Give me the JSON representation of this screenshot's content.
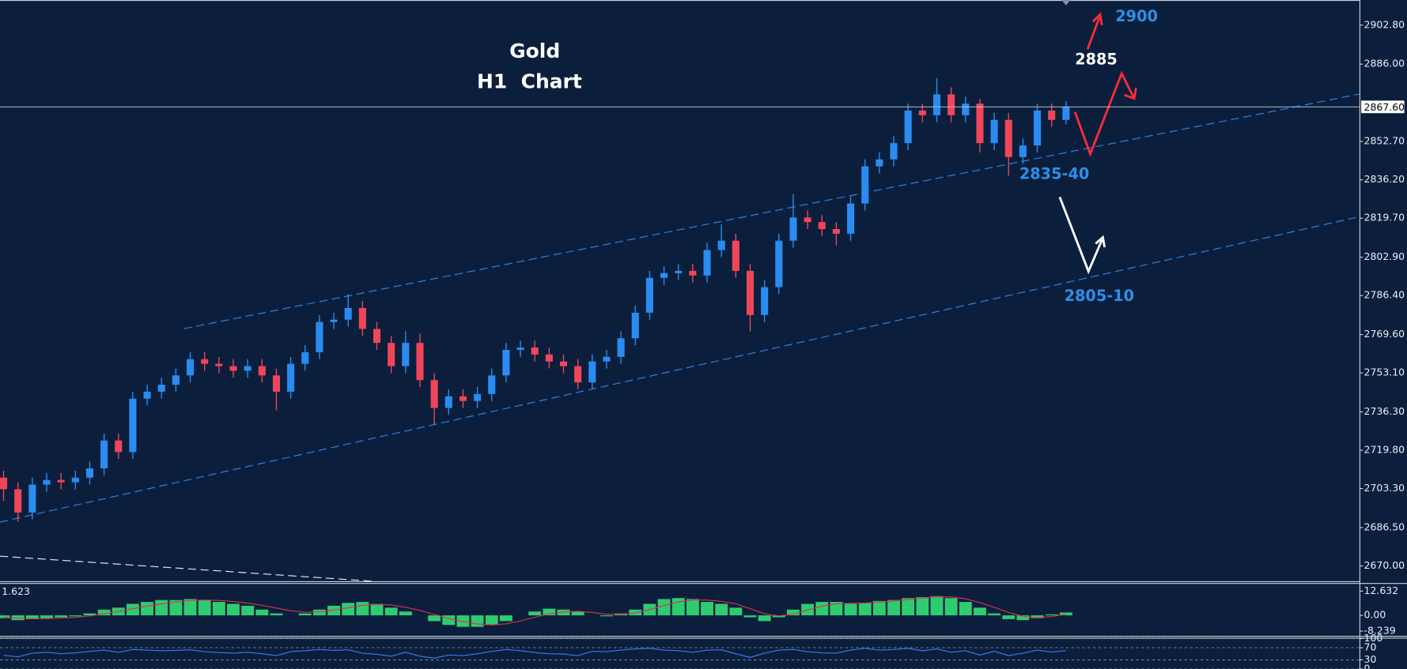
{
  "chart_data": [
    {
      "type": "candlestick",
      "title": "Gold",
      "subtitle": "H1  Chart",
      "up_color": "#2a8cf0",
      "down_color": "#f0465a",
      "open": [
        2708,
        2703,
        2693,
        2705,
        2707,
        2706,
        2708,
        2712,
        2724,
        2719,
        2742,
        2745,
        2748,
        2752,
        2759,
        2757,
        2756,
        2754,
        2756,
        2752,
        2745,
        2757,
        2762,
        2775,
        2776,
        2781,
        2772,
        2766,
        2756,
        2766,
        2750,
        2738,
        2743,
        2741,
        2744,
        2752,
        2763,
        2764,
        2761,
        2758,
        2756,
        2749,
        2758,
        2760,
        2768,
        2779,
        2794,
        2796,
        2797,
        2795,
        2806,
        2810,
        2797,
        2778,
        2790,
        2810,
        2820,
        2818,
        2815,
        2813,
        2826,
        2842,
        2845,
        2852,
        2866,
        2864,
        2873,
        2864,
        2869,
        2852,
        2862,
        2846,
        2851,
        2866,
        2862
      ],
      "high": [
        2711,
        2706,
        2708,
        2710,
        2710,
        2711,
        2715,
        2727,
        2727,
        2745,
        2748,
        2751,
        2755,
        2762,
        2762,
        2760,
        2759,
        2759,
        2759,
        2755,
        2760,
        2765,
        2778,
        2779,
        2787,
        2784,
        2775,
        2769,
        2771,
        2770,
        2753,
        2746,
        2746,
        2747,
        2755,
        2766,
        2767,
        2767,
        2764,
        2761,
        2759,
        2761,
        2763,
        2771,
        2782,
        2797,
        2799,
        2800,
        2800,
        2809,
        2817,
        2813,
        2800,
        2793,
        2813,
        2830,
        2823,
        2821,
        2818,
        2829,
        2845,
        2848,
        2855,
        2869,
        2869,
        2880,
        2876,
        2872,
        2871,
        2865,
        2865,
        2854,
        2869,
        2869,
        2870
      ],
      "low": [
        2698,
        2689,
        2690,
        2702,
        2703,
        2703,
        2705,
        2709,
        2716,
        2716,
        2739,
        2742,
        2745,
        2749,
        2754,
        2753,
        2751,
        2751,
        2749,
        2737,
        2742,
        2754,
        2759,
        2772,
        2773,
        2769,
        2763,
        2753,
        2753,
        2747,
        2731,
        2735,
        2738,
        2738,
        2741,
        2749,
        2760,
        2758,
        2755,
        2753,
        2746,
        2746,
        2755,
        2757,
        2765,
        2776,
        2791,
        2793,
        2792,
        2792,
        2803,
        2794,
        2771,
        2775,
        2787,
        2807,
        2815,
        2812,
        2808,
        2810,
        2823,
        2839,
        2842,
        2849,
        2861,
        2861,
        2861,
        2861,
        2848,
        2849,
        2838,
        2843,
        2848,
        2859,
        2860
      ],
      "close": [
        2703,
        2693,
        2705,
        2707,
        2706,
        2708,
        2712,
        2724,
        2719,
        2742,
        2745,
        2748,
        2752,
        2759,
        2757,
        2756,
        2754,
        2756,
        2752,
        2745,
        2757,
        2762,
        2775,
        2776,
        2781,
        2772,
        2766,
        2756,
        2766,
        2750,
        2738,
        2743,
        2741,
        2744,
        2752,
        2763,
        2764,
        2761,
        2758,
        2756,
        2749,
        2758,
        2760,
        2768,
        2779,
        2794,
        2796,
        2797,
        2795,
        2806,
        2810,
        2797,
        2778,
        2790,
        2810,
        2820,
        2818,
        2815,
        2813,
        2826,
        2842,
        2845,
        2852,
        2866,
        2864,
        2873,
        2864,
        2869,
        2852,
        2862,
        2846,
        2851,
        2866,
        2862,
        2867.6
      ],
      "ylim": [
        2663.8,
        2913.6
      ],
      "yticks": [
        {
          "value": 2902.8,
          "label": "2902.80"
        },
        {
          "value": 2886,
          "label": "2886.00"
        },
        {
          "value": 2852.7,
          "label": "2852.70"
        },
        {
          "value": 2836.2,
          "label": "2836.20"
        },
        {
          "value": 2819.7,
          "label": "2819.70"
        },
        {
          "value": 2802.9,
          "label": "2802.90"
        },
        {
          "value": 2786.4,
          "label": "2786.40"
        },
        {
          "value": 2769.6,
          "label": "2769.60"
        },
        {
          "value": 2753.1,
          "label": "2753.10"
        },
        {
          "value": 2736.3,
          "label": "2736.30"
        },
        {
          "value": 2719.8,
          "label": "2719.80"
        },
        {
          "value": 2703.3,
          "label": "2703.30"
        },
        {
          "value": 2686.5,
          "label": "2686.50"
        },
        {
          "value": 2670,
          "label": "2670.00"
        }
      ],
      "last_price": {
        "value": 2867.6,
        "label": "2867.60"
      },
      "annotations": [
        "2900",
        "2885",
        "2835-40",
        "2805-10"
      ]
    },
    {
      "type": "macd",
      "current_value": 1.623,
      "color": "#2ecc71",
      "signal_color": "#e0304a",
      "values": [
        -1.5,
        -2.5,
        -2,
        -1.5,
        -1,
        -0.5,
        1,
        3,
        4,
        6,
        7,
        8,
        8,
        8.5,
        8,
        7,
        6,
        5,
        3,
        1,
        0,
        1,
        3,
        5,
        6.5,
        7,
        6,
        4,
        2,
        0,
        -3,
        -5,
        -6,
        -6,
        -5,
        -3,
        0,
        2,
        3.5,
        3,
        2,
        0,
        -0.5,
        1,
        3,
        6,
        8.5,
        9,
        8.5,
        7,
        6,
        4,
        -1,
        -3,
        -1,
        3,
        6,
        7,
        7,
        6,
        6.5,
        7.5,
        8,
        9,
        9.5,
        10,
        9,
        7,
        4,
        1,
        -2,
        -2.5,
        -1.5,
        0.5,
        1.5
      ],
      "signal": [
        -1,
        -1.5,
        -1.8,
        -1.7,
        -1.4,
        -1,
        -0.3,
        0.8,
        2,
        3.5,
        4.8,
        6,
        7,
        7.8,
        8,
        7.8,
        7.2,
        6.4,
        5.2,
        3.8,
        2.4,
        1.6,
        1.8,
        2.8,
        4,
        5.2,
        5.8,
        5.4,
        4.2,
        2.6,
        0.5,
        -1.6,
        -3.3,
        -4.5,
        -5,
        -4.4,
        -2.9,
        -1,
        0.8,
        1.8,
        2.1,
        1.5,
        0.6,
        0.5,
        1.3,
        3,
        5.2,
        7,
        8,
        8,
        7.3,
        6,
        3.5,
        0.8,
        -0.3,
        0.6,
        2.8,
        4.8,
        6,
        6.3,
        6.4,
        6.9,
        7.5,
        8.3,
        9,
        9.6,
        9.6,
        8.6,
        6.7,
        4.2,
        1.5,
        -0.5,
        -1.3,
        -0.6,
        0.5
      ],
      "ylim": [
        -10.7,
        16.4
      ],
      "yticks": [
        12.632,
        {
          "value": 0,
          "label": "0.00"
        },
        -8.239
      ]
    },
    {
      "type": "line",
      "color": "#3a7bf0",
      "grid": true,
      "values": [
        45,
        40,
        52,
        55,
        50,
        53,
        58,
        62,
        55,
        64,
        62,
        60,
        61,
        63,
        57,
        54,
        52,
        55,
        50,
        44,
        57,
        60,
        64,
        61,
        63,
        52,
        48,
        42,
        55,
        42,
        36,
        46,
        44,
        50,
        58,
        64,
        60,
        54,
        50,
        49,
        44,
        58,
        57,
        62,
        66,
        68,
        62,
        60,
        55,
        62,
        63,
        50,
        38,
        52,
        62,
        64,
        57,
        53,
        52,
        62,
        68,
        62,
        64,
        68,
        60,
        66,
        55,
        60,
        46,
        58,
        44,
        52,
        62,
        56,
        60
      ],
      "ylim": [
        0,
        100
      ],
      "yticks": [
        100,
        70,
        30,
        0
      ]
    }
  ]
}
